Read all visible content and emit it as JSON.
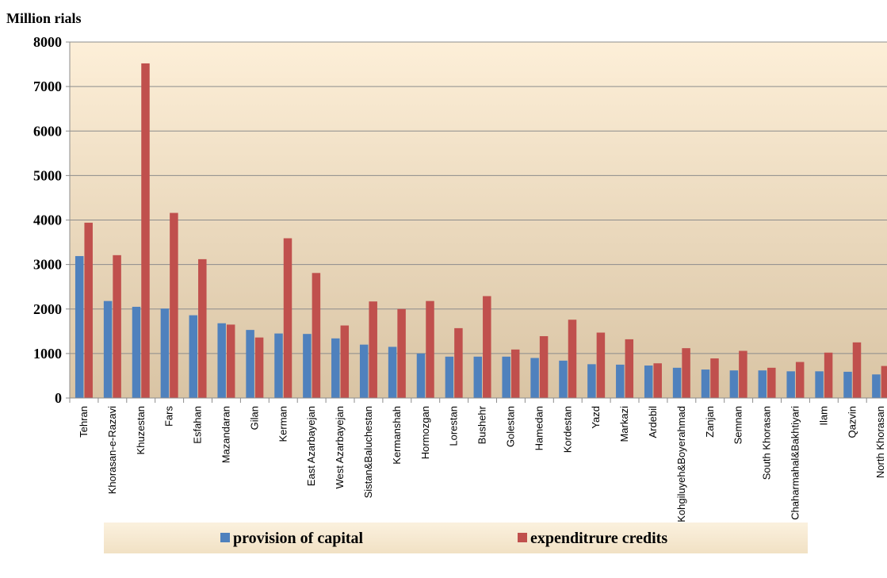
{
  "chart_data": {
    "type": "bar",
    "title": "",
    "ylabel": "Million rials",
    "xlabel": "",
    "ylim": [
      0,
      8000
    ],
    "yticks": [
      "0",
      "1000",
      "2000",
      "3000",
      "4000",
      "5000",
      "6000",
      "7000",
      "8000"
    ],
    "grid": "horizontal",
    "legend_position": "bottom",
    "categories": [
      "Tehran",
      "Khorasan-e-Razavi",
      "Khuzestan",
      "Fars",
      "Esfahan",
      "Mazandaran",
      "Gilan",
      "Kerman",
      "East Azarbayejan",
      "West Azarbayejan",
      "Sistan&Baluchestan",
      "Kermanshah",
      "Hormozgan",
      "Lorestan",
      "Bushehr",
      "Golestan",
      "Hamedan",
      "Kordestan",
      "Yazd",
      "Markazi",
      "Ardebil",
      "Kohgiluyeh&Boyerahmad",
      "Zanjan",
      "Semnan",
      "South Khorasan",
      "Chaharmahal&Bakhtiyari",
      "Ilam",
      "Qazvin",
      "North Khorasan"
    ],
    "series": [
      {
        "name": "provision of capital",
        "color": "#4f81bd",
        "values": [
          3190,
          2180,
          2050,
          2010,
          1860,
          1680,
          1530,
          1450,
          1440,
          1340,
          1200,
          1150,
          1000,
          930,
          930,
          930,
          900,
          840,
          760,
          750,
          730,
          680,
          640,
          620,
          620,
          600,
          600,
          590,
          530
        ]
      },
      {
        "name": "expenditrure credits",
        "color": "#c0504d",
        "values": [
          3940,
          3210,
          7520,
          4160,
          3120,
          1650,
          1360,
          3590,
          2810,
          1630,
          2170,
          2000,
          2180,
          1570,
          2290,
          1090,
          1390,
          1760,
          1470,
          1320,
          780,
          1120,
          890,
          1060,
          680,
          810,
          1020,
          1250,
          720
        ]
      }
    ]
  }
}
